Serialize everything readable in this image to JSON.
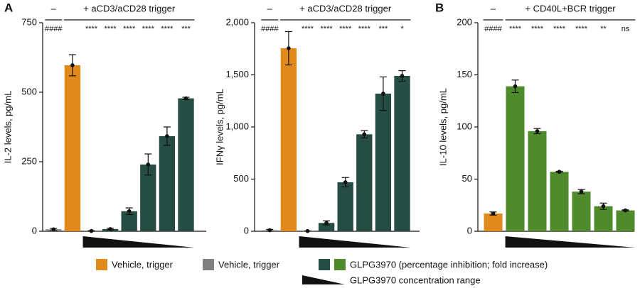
{
  "panel_labels": [
    "A",
    "B"
  ],
  "chart_data": [
    {
      "type": "bar",
      "ylabel": "IL-2 levels, pg/mL",
      "ylim": [
        0,
        750
      ],
      "yticks": [
        0,
        250,
        500,
        750
      ],
      "no_trigger_label": "–",
      "trigger_label": "+ aCD3/aCD28 trigger",
      "values": [
        7,
        597,
        1,
        8,
        72,
        240,
        342,
        478
      ],
      "errors": [
        3,
        38,
        1,
        3,
        12,
        38,
        33,
        4
      ],
      "colors": [
        "#808080",
        "#e08a1e",
        "#264d44",
        "#264d44",
        "#264d44",
        "#264d44",
        "#264d44",
        "#264d44"
      ],
      "significance": [
        "####",
        null,
        "****",
        "****",
        "****",
        "****",
        "****",
        "***"
      ]
    },
    {
      "type": "bar",
      "ylabel": "IFNγ levels, pg/mL",
      "ylim": [
        0,
        2000
      ],
      "yticks": [
        0,
        500,
        {
          "value": 1000,
          "label": "1,000"
        },
        {
          "value": 1500,
          "label": "1,500"
        },
        {
          "value": 2000,
          "label": "2,000"
        }
      ],
      "no_trigger_label": "–",
      "trigger_label": "+ aCD3/aCD28 trigger",
      "values": [
        10,
        1755,
        2,
        80,
        470,
        930,
        1320,
        1490
      ],
      "errors": [
        8,
        160,
        1,
        20,
        45,
        35,
        160,
        50
      ],
      "colors": [
        "#808080",
        "#e08a1e",
        "#264d44",
        "#264d44",
        "#264d44",
        "#264d44",
        "#264d44",
        "#264d44"
      ],
      "significance": [
        "####",
        null,
        "****",
        "****",
        "****",
        "****",
        "***",
        "*"
      ]
    },
    {
      "type": "bar",
      "ylabel": "IL-10 levels, pg/mL",
      "ylim": [
        0,
        200
      ],
      "yticks": [
        0,
        50,
        100,
        150,
        200
      ],
      "no_trigger_label": "–",
      "trigger_label": "+ CD40L+BCR trigger",
      "values": [
        17,
        139,
        96,
        57,
        38,
        24,
        20
      ],
      "errors": [
        1.5,
        6,
        2.5,
        0.5,
        2,
        3,
        0.5
      ],
      "colors": [
        "#e08a1e",
        "#4f8a2c",
        "#4f8a2c",
        "#4f8a2c",
        "#4f8a2c",
        "#4f8a2c",
        "#4f8a2c"
      ],
      "significance": [
        "####",
        "****",
        "****",
        "****",
        "****",
        "**",
        "ns"
      ]
    }
  ],
  "legend": [
    {
      "label": "Vehicle, trigger",
      "colors": [
        "#e08a1e"
      ]
    },
    {
      "label": "Vehicle, trigger",
      "colors": [
        "#808080"
      ]
    },
    {
      "label": "GLPG3970 (percentage inhibition; fold increase)",
      "colors": [
        "#264d44",
        "#4f8a2c"
      ]
    },
    {
      "label": "GLPG3970 concentration range"
    }
  ]
}
